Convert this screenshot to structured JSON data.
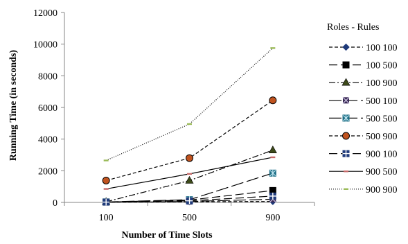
{
  "chart_data": {
    "type": "line",
    "x": [
      "100",
      "500",
      "900"
    ],
    "xlabel": "Number of Time Slots",
    "ylabel": "Running Time (in seconds)",
    "ylim": [
      0,
      12000
    ],
    "yticks": [
      0,
      2000,
      4000,
      6000,
      8000,
      10000,
      12000
    ],
    "yticklabels": [
      "0",
      "2000",
      "4000",
      "6000",
      "8000",
      "10000",
      "12000"
    ],
    "grid": false,
    "legend_title": "Roles - Rules",
    "legend_position": "right",
    "series": [
      {
        "name": "100 100",
        "values": [
          10,
          40,
          60
        ],
        "color": "#1f3a7a",
        "marker": "diamond",
        "dash": "5,3"
      },
      {
        "name": "100 500",
        "values": [
          20,
          150,
          750
        ],
        "color": "#000000",
        "marker": "square",
        "dash": "12,5"
      },
      {
        "name": "100 900",
        "values": [
          40,
          1380,
          3300
        ],
        "color": "#3d4a1a",
        "marker": "triangle",
        "dash": "9,3,2,3"
      },
      {
        "name": "500 100",
        "values": [
          15,
          60,
          200
        ],
        "color": "#3a2a55",
        "marker": "xsquare",
        "dash": "18,5"
      },
      {
        "name": "500 500",
        "values": [
          30,
          170,
          1850
        ],
        "color": "#1f6f86",
        "marker": "asterisk-square",
        "dash": "18,5"
      },
      {
        "name": "500 900",
        "values": [
          1380,
          2800,
          6450
        ],
        "color": "#c0531f",
        "marker": "circle",
        "dash": "5,3"
      },
      {
        "name": "900 100",
        "values": [
          20,
          100,
          400
        ],
        "color": "#1f3a7a",
        "marker": "plus-square",
        "dash": "12,5"
      },
      {
        "name": "900 500",
        "values": [
          850,
          1800,
          2850
        ],
        "color": "#c76a6a",
        "marker": "dash",
        "dash": ""
      },
      {
        "name": "900 900",
        "values": [
          2650,
          4950,
          9750
        ],
        "color": "#9bbb59",
        "marker": "dash",
        "dash": "1,2"
      }
    ]
  }
}
